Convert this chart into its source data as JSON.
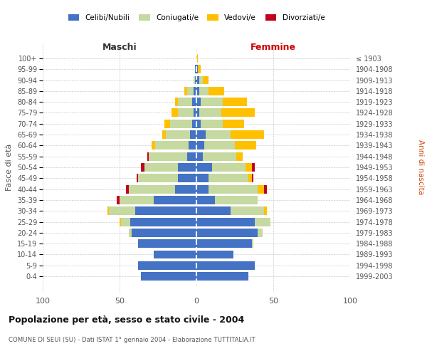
{
  "age_groups": [
    "0-4",
    "5-9",
    "10-14",
    "15-19",
    "20-24",
    "25-29",
    "30-34",
    "35-39",
    "40-44",
    "45-49",
    "50-54",
    "55-59",
    "60-64",
    "65-69",
    "70-74",
    "75-79",
    "80-84",
    "85-89",
    "90-94",
    "95-99",
    "100+"
  ],
  "birth_years": [
    "1999-2003",
    "1994-1998",
    "1989-1993",
    "1984-1988",
    "1979-1983",
    "1974-1978",
    "1969-1973",
    "1964-1968",
    "1959-1963",
    "1954-1958",
    "1949-1953",
    "1944-1948",
    "1939-1943",
    "1934-1938",
    "1929-1933",
    "1924-1928",
    "1919-1923",
    "1914-1918",
    "1909-1913",
    "1904-1908",
    "≤ 1903"
  ],
  "male_celibe": [
    36,
    38,
    28,
    38,
    42,
    43,
    40,
    28,
    14,
    12,
    12,
    6,
    5,
    4,
    3,
    2,
    3,
    2,
    1,
    1,
    0
  ],
  "male_coniugato": [
    0,
    0,
    0,
    0,
    2,
    6,
    17,
    22,
    30,
    26,
    22,
    25,
    22,
    16,
    14,
    10,
    9,
    4,
    1,
    0,
    0
  ],
  "male_vedovo": [
    0,
    0,
    0,
    0,
    0,
    1,
    1,
    0,
    0,
    0,
    0,
    0,
    2,
    2,
    4,
    4,
    2,
    2,
    0,
    0,
    0
  ],
  "male_divorziato": [
    0,
    0,
    0,
    0,
    0,
    0,
    0,
    2,
    2,
    1,
    2,
    1,
    0,
    0,
    0,
    0,
    0,
    0,
    0,
    0,
    0
  ],
  "female_celibe": [
    34,
    38,
    24,
    36,
    40,
    38,
    22,
    12,
    8,
    8,
    10,
    4,
    5,
    6,
    3,
    2,
    3,
    2,
    2,
    1,
    0
  ],
  "female_coniugato": [
    0,
    0,
    0,
    1,
    3,
    10,
    22,
    28,
    32,
    26,
    22,
    22,
    20,
    16,
    14,
    14,
    14,
    6,
    2,
    0,
    0
  ],
  "female_vedovo": [
    0,
    0,
    0,
    0,
    0,
    0,
    2,
    0,
    4,
    2,
    4,
    4,
    14,
    22,
    14,
    22,
    16,
    10,
    4,
    2,
    1
  ],
  "female_divorziato": [
    0,
    0,
    0,
    0,
    0,
    0,
    0,
    0,
    2,
    1,
    2,
    0,
    0,
    0,
    0,
    0,
    0,
    0,
    0,
    0,
    0
  ],
  "color_celibe": "#4472c4",
  "color_coniugato": "#c5d9a0",
  "color_vedovo": "#ffc000",
  "color_divorziato": "#c0001d",
  "title": "Popolazione per età, sesso e stato civile - 2004",
  "subtitle": "COMUNE DI SEUI (SU) - Dati ISTAT 1° gennaio 2004 - Elaborazione TUTTITALIA.IT",
  "xlabel_left": "Maschi",
  "xlabel_right": "Femmine",
  "ylabel_left": "Fasce di età",
  "ylabel_right": "Anni di nascita",
  "xlim": 100
}
